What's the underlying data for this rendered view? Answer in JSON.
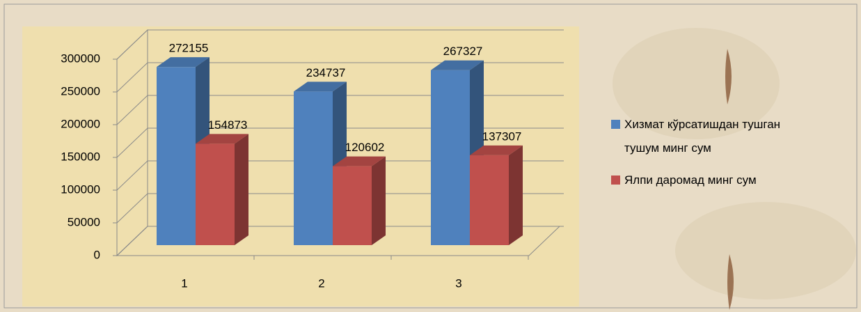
{
  "chart_data": {
    "type": "bar3d",
    "categories": [
      "1",
      "2",
      "3"
    ],
    "series": [
      {
        "name": "Хизмат кўрсатишдан тушган тушум минг сум",
        "color": "#4f81bd",
        "values": [
          272155,
          234737,
          267327
        ]
      },
      {
        "name": "Ялпи даромад минг сум",
        "color": "#c0504d",
        "values": [
          154873,
          120602,
          137307
        ]
      }
    ],
    "ylim": [
      0,
      300000
    ],
    "yticks": [
      0,
      50000,
      100000,
      150000,
      200000,
      250000,
      300000
    ],
    "grid": true,
    "legend": "right"
  }
}
